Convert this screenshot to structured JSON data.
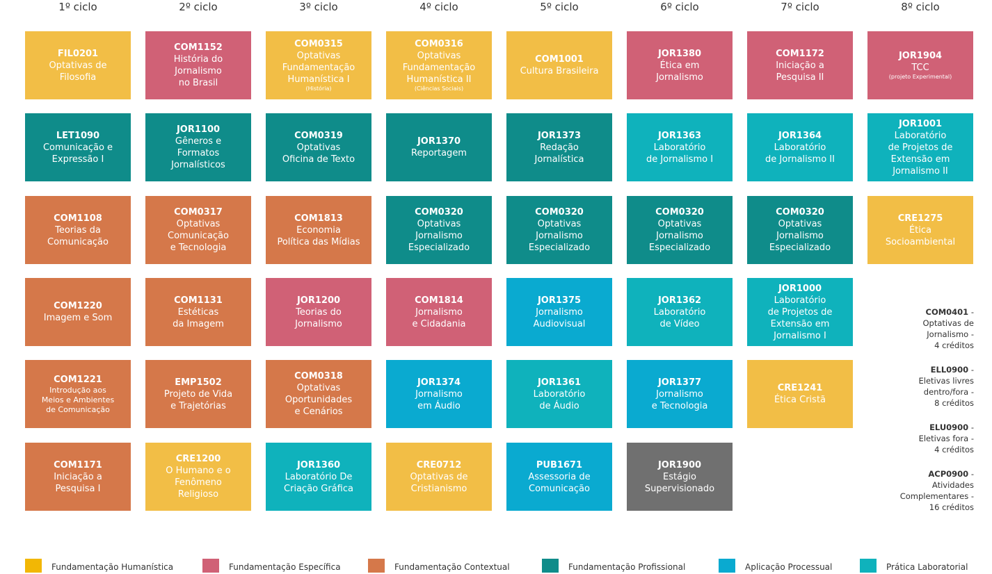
{
  "colors": {
    "Y": "#f2be46",
    "P": "#d06176",
    "O": "#d5784a",
    "T": "#0f8c8a",
    "B": "#0aaad0",
    "C": "#0fb2bc",
    "G": "#707070"
  },
  "cycles": [
    "1º ciclo",
    "2º ciclo",
    "3º ciclo",
    "4º ciclo",
    "5º ciclo",
    "6º ciclo",
    "7º ciclo",
    "8º ciclo"
  ],
  "columns": [
    [
      {
        "code": "FIL0201",
        "title": "Optativas de\nFilosofia",
        "color": "Y"
      },
      {
        "code": "LET1090",
        "title": "Comunicação e\nExpressão I",
        "color": "T"
      },
      {
        "code": "COM1108",
        "title": "Teorias da\nComunicação",
        "color": "O"
      },
      {
        "code": "COM1220",
        "title": "Imagem e Som",
        "color": "O"
      },
      {
        "code": "COM1221",
        "title": "Introdução aos\nMeios e Ambientes\nde Comunicação",
        "color": "O",
        "small": true
      },
      {
        "code": "COM1171",
        "title": "Iniciação a\nPesquisa I",
        "color": "O"
      }
    ],
    [
      {
        "code": "COM1152",
        "title": "História do\nJornalismo\nno Brasil",
        "color": "P"
      },
      {
        "code": "JOR1100",
        "title": "Gêneros e\nFormatos\nJornalísticos",
        "color": "T"
      },
      {
        "code": "COM0317",
        "title": "Optativas\nComunicação\ne Tecnologia",
        "color": "O"
      },
      {
        "code": "COM1131",
        "title": "Estéticas\nda Imagem",
        "color": "O"
      },
      {
        "code": "EMP1502",
        "title": "Projeto de Vida\ne Trajetórias",
        "color": "O"
      },
      {
        "code": "CRE1200",
        "title": "O Humano e o\nFenômeno\nReligioso",
        "color": "Y"
      }
    ],
    [
      {
        "code": "COM0315",
        "title": "Optativas\nFundamentação\nHumanística I",
        "sub": "(História)",
        "color": "Y"
      },
      {
        "code": "COM0319",
        "title": "Optativas\nOficina de Texto",
        "color": "T"
      },
      {
        "code": "COM1813",
        "title": "Economia\nPolítica das Mídias",
        "color": "O"
      },
      {
        "code": "JOR1200",
        "title": "Teorias do\nJornalismo",
        "color": "P"
      },
      {
        "code": "COM0318",
        "title": "Optativas\nOportunidades\ne Cenários",
        "color": "O"
      },
      {
        "code": "JOR1360",
        "title": "Laboratório De\nCriação Gráfica",
        "color": "C"
      }
    ],
    [
      {
        "code": "COM0316",
        "title": "Optativas\nFundamentação\nHumanística II",
        "sub": "(Ciências Sociais)",
        "color": "Y"
      },
      {
        "code": "JOR1370",
        "title": "Reportagem",
        "color": "T"
      },
      {
        "code": "COM0320",
        "title": "Optativas\nJornalismo\nEspecializado",
        "color": "T"
      },
      {
        "code": "COM1814",
        "title": "Jornalismo\ne Cidadania",
        "color": "P"
      },
      {
        "code": "JOR1374",
        "title": "Jornalismo\nem Áudio",
        "color": "B"
      },
      {
        "code": "CRE0712",
        "title": "Optativas de\nCristianismo",
        "color": "Y"
      }
    ],
    [
      {
        "code": "COM1001",
        "title": "Cultura Brasileira",
        "color": "Y"
      },
      {
        "code": "JOR1373",
        "title": "Redação\nJornalística",
        "color": "T"
      },
      {
        "code": "COM0320",
        "title": "Optativas\nJornalismo\nEspecializado",
        "color": "T"
      },
      {
        "code": "JOR1375",
        "title": "Jornalismo\nAudiovisual",
        "color": "B"
      },
      {
        "code": "JOR1361",
        "title": "Laboratório\nde Áudio",
        "color": "C"
      },
      {
        "code": "PUB1671",
        "title": "Assessoria de\nComunicação",
        "color": "B"
      }
    ],
    [
      {
        "code": "JOR1380",
        "title": "Ética em\nJornalismo",
        "color": "P"
      },
      {
        "code": "JOR1363",
        "title": "Laboratório\nde Jornalismo I",
        "color": "C"
      },
      {
        "code": "COM0320",
        "title": "Optativas\nJornalismo\nEspecializado",
        "color": "T"
      },
      {
        "code": "JOR1362",
        "title": "Laboratório\nde Vídeo",
        "color": "C"
      },
      {
        "code": "JOR1377",
        "title": "Jornalismo\ne Tecnologia",
        "color": "B"
      },
      {
        "code": "JOR1900",
        "title": "Estágio\nSupervisionado",
        "color": "G"
      }
    ],
    [
      {
        "code": "COM1172",
        "title": "Iniciação a\nPesquisa II",
        "color": "P"
      },
      {
        "code": "JOR1364",
        "title": "Laboratório\nde Jornalismo II",
        "color": "C"
      },
      {
        "code": "COM0320",
        "title": "Optativas\nJornalismo\nEspecializado",
        "color": "T"
      },
      {
        "code": "JOR1000",
        "title": "Laboratório\nde Projetos de\nExtensão em\nJornalismo I",
        "color": "C"
      },
      {
        "code": "CRE1241",
        "title": "Ética Cristã",
        "color": "Y"
      }
    ],
    [
      {
        "code": "JOR1904",
        "title": "TCC",
        "sub": "(projeto Experimental)",
        "color": "P"
      },
      {
        "code": "JOR1001",
        "title": "Laboratório\nde Projetos de\nExtensão em\nJornalismo II",
        "color": "C"
      },
      {
        "code": "CRE1275",
        "title": "Ética\nSocioambiental",
        "color": "Y"
      }
    ]
  ],
  "notes": [
    {
      "code": "COM0401",
      "text": "Optativas de\nJornalismo -\n4 créditos"
    },
    {
      "code": "ELL0900",
      "text": "Eletivas livres\ndentro/fora -\n8 créditos"
    },
    {
      "code": "ELU0900",
      "text": "Eletivas fora -\n4 créditos"
    },
    {
      "code": "ACP0900",
      "text": "Atividades\nComplementares -\n16 créditos"
    }
  ],
  "legend": [
    {
      "label": "Fundamentação Humanística",
      "color": "#f2b705"
    },
    {
      "label": "Fundamentação Específica",
      "color": "#d06176"
    },
    {
      "label": "Fundamentação Contextual",
      "color": "#d5784a"
    },
    {
      "label": "Fundamentação Profissional",
      "color": "#0f8c8a"
    },
    {
      "label": "Aplicação Processual",
      "color": "#0aaad0"
    },
    {
      "label": "Prática Laboratorial",
      "color": "#0fb2bc"
    }
  ]
}
